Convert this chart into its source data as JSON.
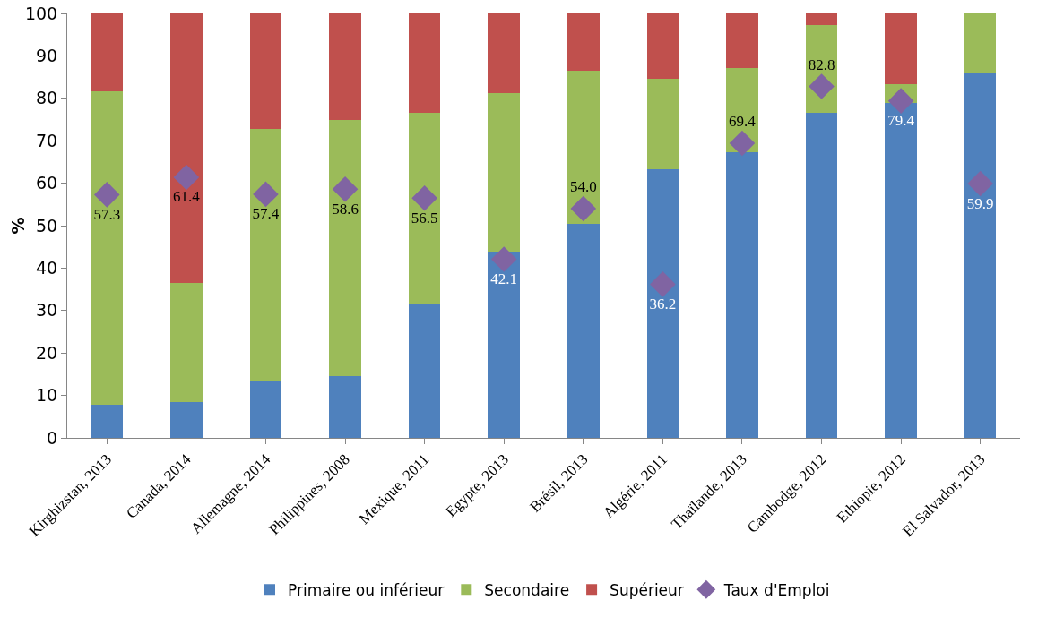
{
  "chart_data": {
    "type": "bar",
    "stacked": true,
    "ylabel": "%",
    "ylim": [
      0,
      100
    ],
    "yticks": [
      0,
      10,
      20,
      30,
      40,
      50,
      60,
      70,
      80,
      90,
      100
    ],
    "grid": false,
    "legend": "bottom",
    "categories": [
      "Kirghizstan, 2013",
      "Canada, 2014",
      "Allemagne, 2014",
      "Philippines, 2008",
      "Mexique, 2011",
      "Egypte, 2013",
      "Brésil, 2013",
      "Algérie, 2011",
      "Thaïlande, 2013",
      "Cambodge, 2012",
      "Ethiopie, 2012",
      "El Salvador, 2013"
    ],
    "series": [
      {
        "name": "Primaire ou inférieur",
        "color": "#4f81bd",
        "values": [
          7.9,
          8.5,
          13.2,
          14.5,
          31.7,
          43.8,
          50.4,
          63.2,
          67.4,
          76.6,
          78.9,
          86.0
        ]
      },
      {
        "name": "Secondaire",
        "color": "#9bbb59",
        "values": [
          73.8,
          28.1,
          59.6,
          60.4,
          44.9,
          37.5,
          36.0,
          21.5,
          19.8,
          20.6,
          4.5,
          14.0
        ]
      },
      {
        "name": "Supérieur",
        "color": "#c0504d",
        "values": [
          18.3,
          63.4,
          27.2,
          25.1,
          23.4,
          18.7,
          13.6,
          15.3,
          12.8,
          2.8,
          16.6,
          0
        ]
      },
      {
        "name": "Taux d'Emploi",
        "type": "scatter",
        "color": "#8064a2",
        "marker": "diamond",
        "values": [
          57.3,
          61.4,
          57.4,
          58.6,
          56.5,
          42.1,
          54.0,
          36.2,
          69.4,
          82.8,
          79.4,
          59.9
        ],
        "value_labels": [
          "57.3",
          "61.4",
          "57.4",
          "58.6",
          "56.5",
          "42.1",
          "54.0",
          "36.2",
          "69.4",
          "82.8",
          "79.4",
          "59.9"
        ]
      }
    ]
  }
}
